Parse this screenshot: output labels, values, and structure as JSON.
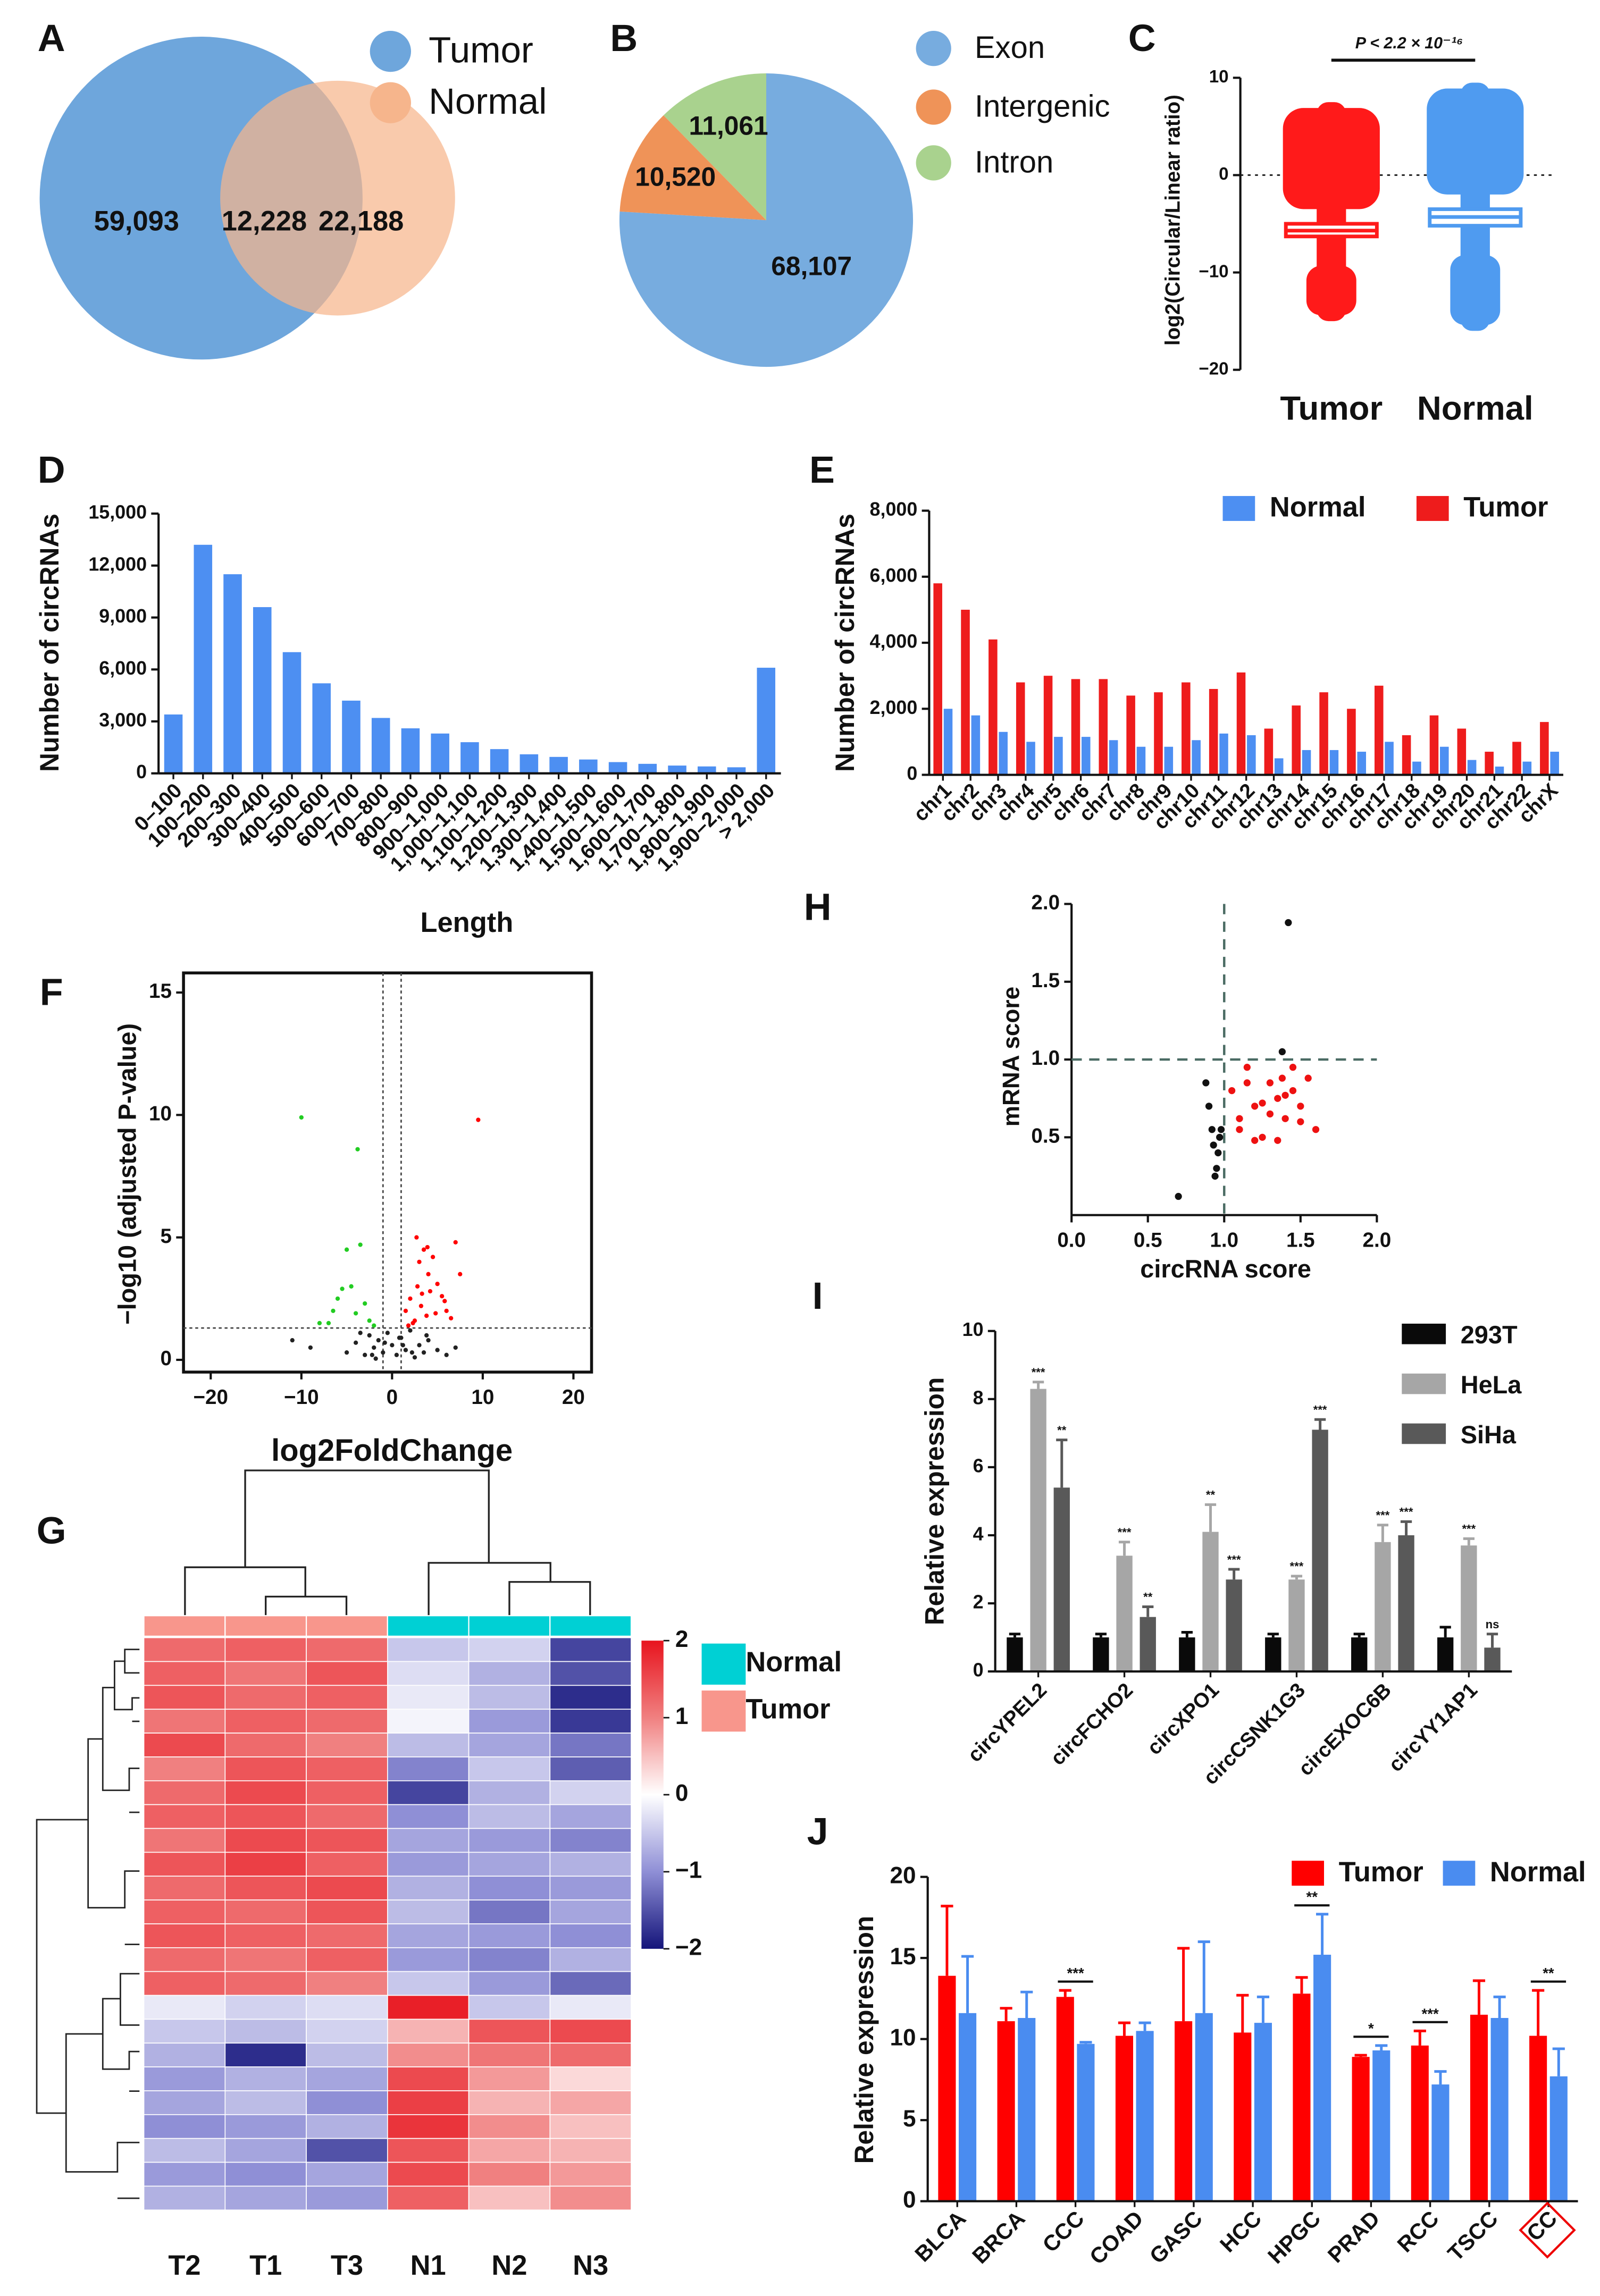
{
  "chart_data": [
    {
      "type": "venn",
      "panel": "A",
      "sets": [
        {
          "name": "Tumor",
          "color": "#6ea6dc"
        },
        {
          "name": "Normal",
          "color": "#f6b58c"
        }
      ],
      "values": [
        59093,
        12228,
        22188
      ],
      "value_labels": [
        "59,093",
        "12,228",
        "22,188"
      ]
    },
    {
      "type": "pie",
      "panel": "B",
      "categories": [
        "Exon",
        "Intergenic",
        "Intron"
      ],
      "values": [
        68107,
        10520,
        11061
      ],
      "value_labels": [
        "68,107",
        "10,520",
        "11,061"
      ],
      "colors": [
        "#77acdf",
        "#ef9358",
        "#a9d28e"
      ]
    },
    {
      "type": "box",
      "panel": "C",
      "ylabel": "log2(Circular/Linear ratio)",
      "annotation": "P < 2.2 × 10⁻¹⁶",
      "categories": [
        "Tumor",
        "Normal"
      ],
      "colors": [
        "#ff1a1a",
        "#4f9bf0"
      ],
      "boxes": [
        {
          "low": -15,
          "q1": -6.3,
          "median": -5.7,
          "q3": -5.0,
          "high": 7.5
        },
        {
          "low": -16,
          "q1": -5.2,
          "median": -4.3,
          "q3": -3.5,
          "high": 9.5
        }
      ],
      "ylim": [
        -20,
        10
      ],
      "yticks": [
        {
          "value": -20,
          "label": "−20"
        },
        {
          "value": -10,
          "label": "−10"
        },
        0,
        10
      ],
      "reference_line": 0
    },
    {
      "type": "bar",
      "panel": "D",
      "xlabel": "Length",
      "ylabel": "Number of circRNAs",
      "categories": [
        "0–100",
        "100–200",
        "200–300",
        "300–400",
        "400–500",
        "500–600",
        "600–700",
        "700–800",
        "800–900",
        "900–1,000",
        "1,000–1,100",
        "1,100–1,200",
        "1,200–1,300",
        "1,300–1,400",
        "1,400–1,500",
        "1,500–1,600",
        "1,600–1,700",
        "1,700–1,800",
        "1,800–1,900",
        "1,900–2,000",
        "> 2,000"
      ],
      "values": [
        3400,
        13200,
        11500,
        9600,
        7000,
        5200,
        4200,
        3200,
        2600,
        2300,
        1800,
        1400,
        1100,
        950,
        800,
        650,
        550,
        450,
        400,
        350,
        6100
      ],
      "color": "#4d8ff2",
      "ylim": [
        0,
        15000
      ],
      "yticks": [
        0,
        {
          "value": 3000,
          "label": "3,000"
        },
        {
          "value": 6000,
          "label": "6,000"
        },
        {
          "value": 9000,
          "label": "9,000"
        },
        {
          "value": 12000,
          "label": "12,000"
        },
        {
          "value": 15000,
          "label": "15,000"
        }
      ]
    },
    {
      "type": "bar",
      "panel": "E",
      "ylabel": "Number of circRNAs",
      "categories": [
        "chr1",
        "chr2",
        "chr3",
        "chr4",
        "chr5",
        "chr6",
        "chr7",
        "chr8",
        "chr9",
        "chr10",
        "chr11",
        "chr12",
        "chr13",
        "chr14",
        "chr15",
        "chr16",
        "chr17",
        "chr18",
        "chr19",
        "chr20",
        "chr21",
        "chr22",
        "chrX"
      ],
      "series": [
        {
          "name": "Normal",
          "color": "#4d8ff2",
          "values": [
            2000,
            1800,
            1300,
            1000,
            1150,
            1150,
            1050,
            850,
            850,
            1050,
            1250,
            1200,
            500,
            750,
            750,
            700,
            1000,
            400,
            850,
            450,
            250,
            400,
            700
          ]
        },
        {
          "name": "Tumor",
          "color": "#ee1c1c",
          "values": [
            5800,
            5000,
            4100,
            2800,
            3000,
            2900,
            2900,
            2400,
            2500,
            2800,
            2600,
            3100,
            1400,
            2100,
            2500,
            2000,
            2700,
            1200,
            1800,
            1400,
            700,
            1000,
            1600
          ]
        }
      ],
      "ylim": [
        0,
        8000
      ],
      "yticks": [
        0,
        {
          "value": 2000,
          "label": "2,000"
        },
        {
          "value": 4000,
          "label": "4,000"
        },
        {
          "value": 6000,
          "label": "6,000"
        },
        {
          "value": 8000,
          "label": "8,000"
        }
      ]
    },
    {
      "type": "scatter",
      "panel": "F",
      "xlabel": "log2FoldChange",
      "ylabel": "−log10 (adjusted P-value)",
      "series": [
        {
          "color": "#ff0000",
          "x": [
            1.5,
            2,
            2.3,
            2.8,
            3,
            3.2,
            3.5,
            3.8,
            4,
            4.2,
            4.5,
            5,
            5.5,
            6,
            6.5,
            7,
            7.5,
            2.5,
            3.3,
            4.8,
            1.8,
            2.7,
            3.9,
            5.8,
            9.5
          ],
          "values": [
            2,
            2.5,
            1.5,
            3,
            4,
            2.2,
            4.5,
            1.8,
            3.5,
            2.8,
            4.2,
            3.1,
            2.6,
            2,
            1.7,
            4.8,
            3.5,
            1.6,
            2.7,
            1.9,
            1.4,
            5,
            4.6,
            2.4,
            9.8
          ]
        },
        {
          "color": "#22cc22",
          "x": [
            -10,
            -3.8,
            -5,
            -6,
            -4.5,
            -3,
            -2.5,
            -7,
            -4,
            -5.5,
            -2,
            -6.5,
            -3.5,
            -8
          ],
          "values": [
            9.9,
            8.6,
            4.5,
            2.5,
            3,
            2.3,
            1.6,
            1.5,
            1.9,
            2.9,
            1.4,
            2,
            4.7,
            1.5
          ]
        },
        {
          "color": "#222222",
          "x": [
            -11,
            -9,
            -5,
            -4,
            -3,
            -2.5,
            -2,
            -1.5,
            -1,
            -0.5,
            0,
            0.5,
            1,
            1.5,
            2,
            2.5,
            3,
            3.5,
            4,
            5,
            6,
            7,
            -3.5,
            -2.2,
            -0.8,
            0.8,
            2.2,
            3.8,
            -1.8,
            1.2
          ],
          "values": [
            0.8,
            0.5,
            0.3,
            0.7,
            0.2,
            1.0,
            0.5,
            0.8,
            0.3,
            1.1,
            0.6,
            0.2,
            0.9,
            0.4,
            1.2,
            0.1,
            0.6,
            0.3,
            0.8,
            0.4,
            0.2,
            0.5,
            1.1,
            0.2,
            0.7,
            0.9,
            0.3,
            1.0,
            0.05,
            0.6
          ]
        }
      ],
      "xlim": [
        -23,
        22
      ],
      "xticks": [
        {
          "value": -20,
          "label": "−20"
        },
        {
          "value": -10,
          "label": "−10"
        },
        0,
        10,
        20
      ],
      "ylim": [
        -0.5,
        15.8
      ],
      "yticks": [
        0,
        5,
        10,
        15
      ],
      "reference_lines": {
        "x": [
          -1,
          1
        ],
        "y": [
          1.3
        ]
      },
      "frame": true
    },
    {
      "type": "heatmap",
      "panel": "G",
      "columns": [
        "T2",
        "T1",
        "T3",
        "N1",
        "N2",
        "N3"
      ],
      "groups": [
        {
          "name": "Normal",
          "color": "#00d0d4"
        },
        {
          "name": "Tumor",
          "color": "#f8968c"
        }
      ],
      "column_group": [
        1,
        1,
        1,
        0,
        0,
        0
      ],
      "rows": [
        [
          1.2,
          1.3,
          1.2,
          -0.5,
          -0.4,
          -1.6
        ],
        [
          1.3,
          1.1,
          1.4,
          -0.3,
          -0.7,
          -1.5
        ],
        [
          1.4,
          1.2,
          1.3,
          -0.2,
          -0.6,
          -1.8
        ],
        [
          1.1,
          1.3,
          1.2,
          -0.1,
          -0.9,
          -1.7
        ],
        [
          1.5,
          1.2,
          1.0,
          -0.6,
          -0.8,
          -1.2
        ],
        [
          1.0,
          1.4,
          1.3,
          -1.1,
          -0.5,
          -1.4
        ],
        [
          1.2,
          1.5,
          1.3,
          -1.6,
          -0.7,
          -0.4
        ],
        [
          1.3,
          1.4,
          1.2,
          -1.0,
          -0.6,
          -0.8
        ],
        [
          1.1,
          1.5,
          1.4,
          -0.8,
          -0.9,
          -1.1
        ],
        [
          1.4,
          1.6,
          1.3,
          -0.9,
          -0.8,
          -0.7
        ],
        [
          1.2,
          1.4,
          1.5,
          -0.7,
          -1.0,
          -0.9
        ],
        [
          1.3,
          1.2,
          1.4,
          -0.6,
          -1.2,
          -0.8
        ],
        [
          1.4,
          1.3,
          1.2,
          -0.8,
          -0.9,
          -1.0
        ],
        [
          1.2,
          1.1,
          1.3,
          -0.9,
          -1.1,
          -0.7
        ],
        [
          1.3,
          1.2,
          1.0,
          -0.5,
          -0.9,
          -1.3
        ],
        [
          -0.2,
          -0.4,
          -0.3,
          1.9,
          -0.5,
          -0.2
        ],
        [
          -0.5,
          -0.6,
          -0.4,
          0.6,
          1.4,
          1.5
        ],
        [
          -0.7,
          -1.8,
          -0.6,
          0.9,
          1.1,
          1.2
        ],
        [
          -0.9,
          -0.7,
          -0.8,
          1.5,
          0.8,
          0.3
        ],
        [
          -0.8,
          -0.6,
          -1.0,
          1.6,
          0.6,
          0.7
        ],
        [
          -1.0,
          -0.9,
          -0.7,
          1.7,
          0.9,
          0.5
        ],
        [
          -0.6,
          -0.8,
          -1.5,
          1.4,
          0.7,
          0.6
        ],
        [
          -0.9,
          -1.0,
          -0.8,
          1.5,
          1.0,
          0.8
        ],
        [
          -0.7,
          -0.8,
          -0.9,
          1.3,
          0.5,
          0.9
        ]
      ],
      "zlim": [
        -2,
        2
      ],
      "zticks": [
        2,
        1,
        0,
        {
          "value": -1,
          "label": "−1"
        },
        {
          "value": -2,
          "label": "−2"
        }
      ]
    },
    {
      "type": "scatter",
      "panel": "H",
      "xlabel": "circRNA score",
      "ylabel": "mRNA score",
      "series": [
        {
          "color": "#111111",
          "x": [
            0.7,
            0.88,
            0.9,
            0.92,
            0.93,
            0.95,
            0.96,
            0.98,
            0.94,
            0.97,
            1.38,
            1.42
          ],
          "values": [
            0.12,
            0.85,
            0.7,
            0.55,
            0.45,
            0.3,
            0.4,
            0.55,
            0.25,
            0.5,
            1.05,
            1.88
          ]
        },
        {
          "color": "#ee1111",
          "x": [
            1.05,
            1.1,
            1.15,
            1.2,
            1.25,
            1.3,
            1.35,
            1.4,
            1.45,
            1.5,
            1.55,
            1.6,
            1.2,
            1.3,
            1.4,
            1.15,
            1.25,
            1.35,
            1.45,
            1.1,
            1.5,
            1.38
          ],
          "values": [
            0.8,
            0.62,
            0.95,
            0.7,
            0.5,
            0.85,
            0.75,
            0.62,
            0.8,
            0.7,
            0.88,
            0.55,
            0.48,
            0.65,
            0.77,
            0.85,
            0.72,
            0.48,
            0.95,
            0.55,
            0.6,
            0.88
          ]
        }
      ],
      "xlim": [
        0,
        2
      ],
      "xticks": [
        {
          "value": 0,
          "label": "0.0"
        },
        0.5,
        {
          "value": 1,
          "label": "1.0"
        },
        1.5,
        {
          "value": 2,
          "label": "2.0"
        }
      ],
      "ylim": [
        0,
        2
      ],
      "yticks": [
        0.5,
        {
          "value": 1,
          "label": "1.0"
        },
        1.5,
        {
          "value": 2,
          "label": "2.0"
        }
      ],
      "reference_lines": {
        "x": [
          1
        ],
        "y": [
          1
        ]
      },
      "frame": false
    },
    {
      "type": "bar",
      "panel": "I",
      "ylabel": "Relative expression",
      "categories": [
        "circYPEL2",
        "circFCHO2",
        "circXPO1",
        "circCSNK1G3",
        "circEXOC6B",
        "circYY1AP1"
      ],
      "series": [
        {
          "name": "293T",
          "color": "#0a0a0a",
          "values": [
            1,
            1,
            1,
            1,
            1,
            1
          ],
          "errors": [
            0.1,
            0.1,
            0.15,
            0.1,
            0.1,
            0.3
          ],
          "significance": [
            null,
            null,
            null,
            null,
            null,
            null
          ]
        },
        {
          "name": "HeLa",
          "color": "#a6a6a6",
          "values": [
            8.3,
            3.4,
            4.1,
            2.7,
            3.8,
            3.7
          ],
          "errors": [
            0.2,
            0.4,
            0.8,
            0.1,
            0.5,
            0.2
          ],
          "significance": [
            "***",
            "***",
            "**",
            "***",
            "***",
            "***"
          ]
        },
        {
          "name": "SiHa",
          "color": "#595959",
          "values": [
            5.4,
            1.6,
            2.7,
            7.1,
            4.0,
            0.7
          ],
          "errors": [
            1.4,
            0.3,
            0.3,
            0.3,
            0.4,
            0.4
          ],
          "significance": [
            "**",
            "**",
            "***",
            "***",
            "***",
            "ns"
          ]
        }
      ],
      "ylim": [
        0,
        10
      ],
      "yticks": [
        0,
        2,
        4,
        6,
        8,
        10
      ]
    },
    {
      "type": "bar",
      "panel": "J",
      "ylabel": "Relative expression",
      "categories": [
        "BLCA",
        "BRCA",
        "CCC",
        "COAD",
        "GASC",
        "HCC",
        "HPGC",
        "PRAD",
        "RCC",
        "TSCC",
        "CC"
      ],
      "series": [
        {
          "name": "Tumor",
          "color": "#ff0000",
          "values": [
            13.9,
            11.1,
            12.6,
            10.2,
            11.1,
            10.4,
            12.8,
            8.9,
            9.6,
            11.5,
            10.2
          ],
          "errors": [
            4.3,
            0.8,
            0.4,
            0.8,
            4.5,
            2.3,
            1.0,
            0.1,
            0.9,
            2.1,
            2.8
          ]
        },
        {
          "name": "Normal",
          "color": "#4a8cf0",
          "values": [
            11.6,
            11.3,
            9.7,
            10.5,
            11.6,
            11.0,
            15.2,
            9.3,
            7.2,
            11.3,
            7.7
          ],
          "errors": [
            3.5,
            1.6,
            0.1,
            0.5,
            4.4,
            1.6,
            2.5,
            0.3,
            0.8,
            1.3,
            1.7
          ]
        }
      ],
      "significance": [
        null,
        null,
        "***",
        null,
        null,
        null,
        "**",
        "*",
        "***",
        null,
        "**"
      ],
      "highlight_index": 10,
      "ylim": [
        0,
        20
      ],
      "yticks": [
        0,
        5,
        10,
        15,
        20
      ]
    }
  ]
}
